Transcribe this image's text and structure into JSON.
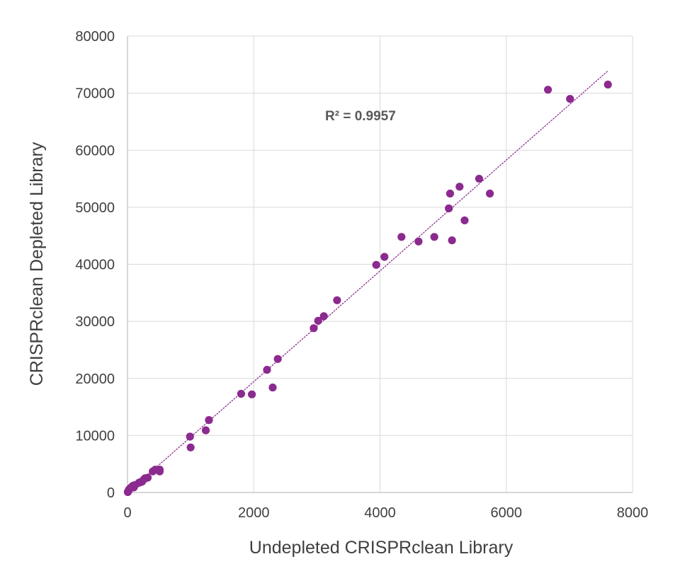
{
  "chart_data": {
    "type": "scatter",
    "title": "",
    "xlabel": "Undepleted CRISPRclean Library",
    "ylabel": "CRISPRclean Depleted Library",
    "xlim": [
      0,
      8000
    ],
    "ylim": [
      0,
      80000
    ],
    "x_ticks": [
      "0",
      "2000",
      "4000",
      "6000",
      "8000"
    ],
    "y_ticks": [
      "0",
      "10000",
      "20000",
      "30000",
      "40000",
      "50000",
      "60000",
      "70000",
      "80000"
    ],
    "grid": true,
    "legend": "none",
    "marker_color": "#8B2A8F",
    "trendline": {
      "type": "linear",
      "style": "dotted",
      "color": "#8B2A8F",
      "x_range": [
        0,
        7600
      ],
      "y_range": [
        0,
        73800
      ]
    },
    "annotation": "R² = 0.9957",
    "series": [
      {
        "points": [
          [
            5,
            80
          ],
          [
            10,
            200
          ],
          [
            15,
            300
          ],
          [
            20,
            400
          ],
          [
            25,
            500
          ],
          [
            30,
            600
          ],
          [
            40,
            700
          ],
          [
            50,
            800
          ],
          [
            60,
            900
          ],
          [
            70,
            1000
          ],
          [
            80,
            1100
          ],
          [
            90,
            1200
          ],
          [
            100,
            900
          ],
          [
            120,
            1300
          ],
          [
            180,
            1700
          ],
          [
            200,
            1800
          ],
          [
            230,
            1900
          ],
          [
            260,
            2300
          ],
          [
            280,
            2500
          ],
          [
            320,
            2600
          ],
          [
            400,
            3700
          ],
          [
            440,
            4000
          ],
          [
            510,
            3700
          ],
          [
            510,
            4000
          ],
          [
            990,
            9800
          ],
          [
            1000,
            7900
          ],
          [
            1240,
            10900
          ],
          [
            1290,
            12700
          ],
          [
            1800,
            17300
          ],
          [
            1970,
            17200
          ],
          [
            2210,
            21500
          ],
          [
            2300,
            18400
          ],
          [
            2380,
            23400
          ],
          [
            2950,
            28800
          ],
          [
            3020,
            30100
          ],
          [
            3110,
            30900
          ],
          [
            3320,
            33700
          ],
          [
            3940,
            39900
          ],
          [
            4070,
            41300
          ],
          [
            4340,
            44800
          ],
          [
            4610,
            44000
          ],
          [
            4860,
            44800
          ],
          [
            5090,
            49800
          ],
          [
            5110,
            52400
          ],
          [
            5140,
            44200
          ],
          [
            5260,
            53600
          ],
          [
            5340,
            47700
          ],
          [
            5570,
            55000
          ],
          [
            5740,
            52400
          ],
          [
            6660,
            70600
          ],
          [
            7010,
            69000
          ],
          [
            7610,
            71500
          ]
        ]
      }
    ]
  }
}
